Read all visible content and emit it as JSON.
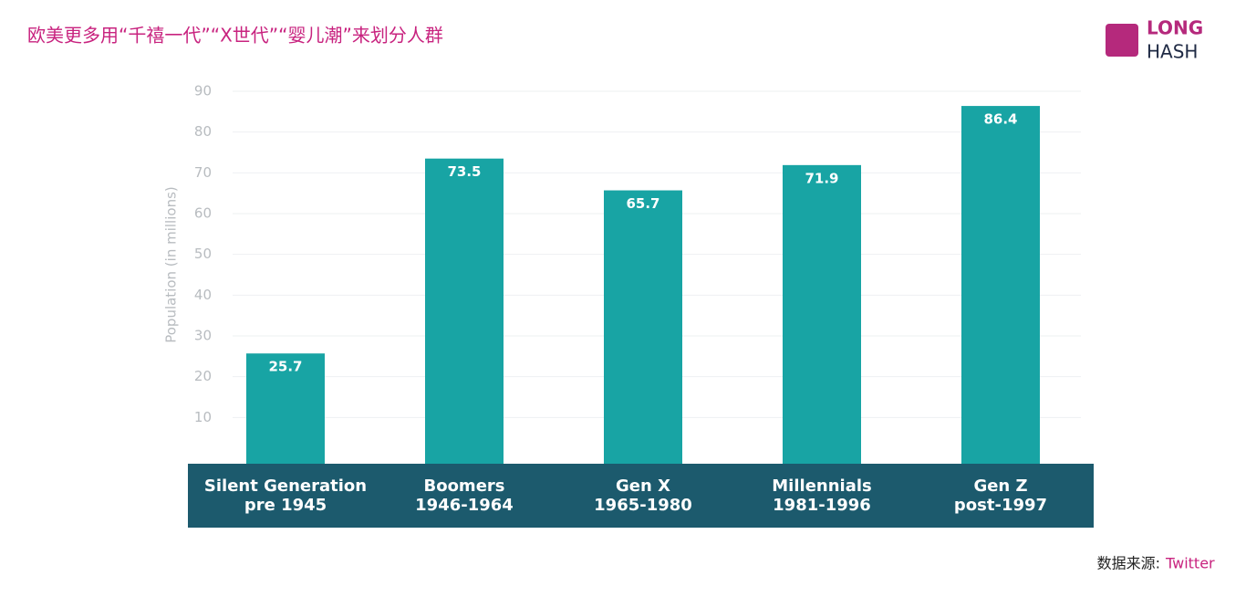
{
  "header": {
    "title": "欧美更多用“千禧一代”“X世代”“婴儿潮”来划分人群",
    "logo": [
      "LONG",
      "HASH"
    ]
  },
  "source": {
    "label": "数据来源:",
    "name": "Twitter"
  },
  "chart_data": {
    "type": "bar",
    "y_label": "Population (in millions)",
    "categories": [
      [
        "Silent Generation",
        "pre 1945"
      ],
      [
        "Boomers",
        "1946-1964"
      ],
      [
        "Gen X",
        "1965-1980"
      ],
      [
        "Millennials",
        "1981-1996"
      ],
      [
        "Gen Z",
        "post-1997"
      ]
    ],
    "values": [
      25.7,
      73.5,
      65.7,
      71.9,
      86.4
    ],
    "color": "#18a4a4",
    "ylim": [
      0,
      90
    ],
    "yticks": [
      10,
      20,
      30,
      40,
      50,
      60,
      70,
      80,
      90
    ],
    "grid": true
  }
}
